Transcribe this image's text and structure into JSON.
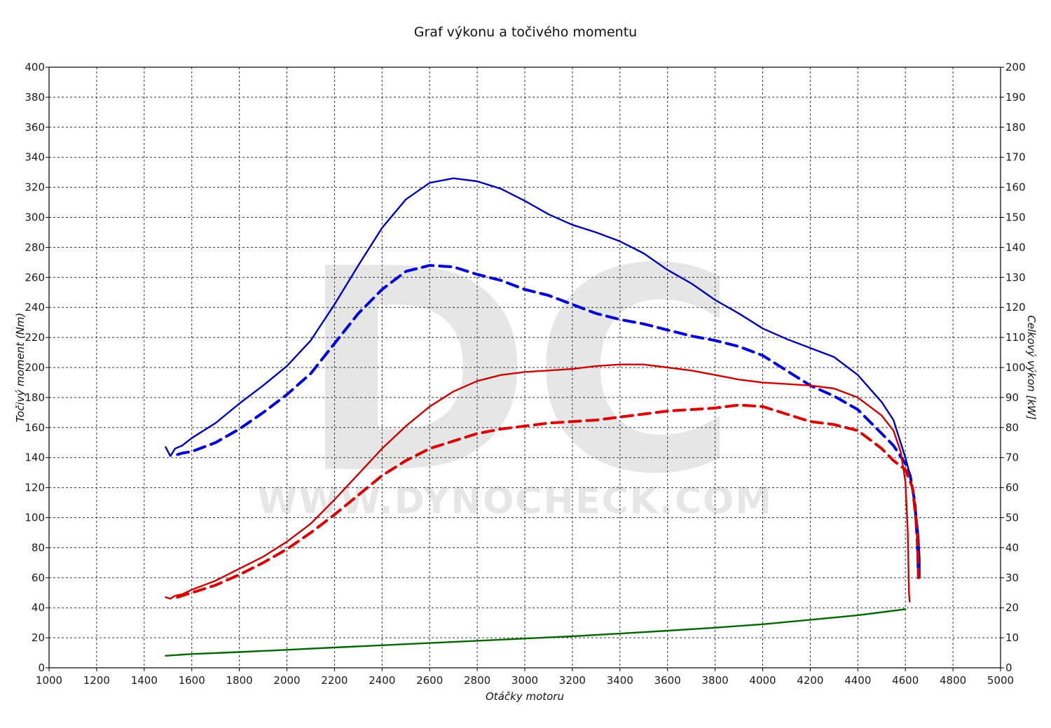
{
  "chart_data": {
    "type": "line",
    "title": "Graf výkonu a točivého momentu",
    "xlabel": "Otáčky motoru",
    "ylabel_left": "Točivý moment (Nm)",
    "ylabel_right": "Celkový výkon [kW]",
    "xlim": [
      1000,
      5000
    ],
    "ylim_left": [
      0,
      400
    ],
    "ylim_right": [
      0,
      200
    ],
    "x_ticks": [
      1000,
      1200,
      1400,
      1600,
      1800,
      2000,
      2200,
      2400,
      2600,
      2800,
      3000,
      3200,
      3400,
      3600,
      3800,
      4000,
      4200,
      4400,
      4600,
      4800,
      5000
    ],
    "y_ticks_left": [
      0,
      20,
      40,
      60,
      80,
      100,
      120,
      140,
      160,
      180,
      200,
      220,
      240,
      260,
      280,
      300,
      320,
      340,
      360,
      380,
      400
    ],
    "y_ticks_right": [
      0,
      10,
      20,
      30,
      40,
      50,
      60,
      70,
      80,
      90,
      100,
      110,
      120,
      130,
      140,
      150,
      160,
      170,
      180,
      190,
      200
    ],
    "grid": true,
    "legend": "none",
    "watermark": {
      "letters": "DC",
      "url": "WWW.DYNOCHECK.COM"
    },
    "series": [
      {
        "axis": "left",
        "color": "#0000bb",
        "dash": "solid",
        "points": [
          [
            1490,
            147
          ],
          [
            1510,
            141
          ],
          [
            1530,
            146
          ],
          [
            1560,
            148
          ],
          [
            1600,
            153
          ],
          [
            1700,
            163
          ],
          [
            1800,
            176
          ],
          [
            1900,
            188
          ],
          [
            2000,
            201
          ],
          [
            2100,
            218
          ],
          [
            2200,
            242
          ],
          [
            2300,
            268
          ],
          [
            2400,
            293
          ],
          [
            2500,
            312
          ],
          [
            2600,
            323
          ],
          [
            2700,
            326
          ],
          [
            2800,
            324
          ],
          [
            2900,
            319
          ],
          [
            3000,
            311
          ],
          [
            3100,
            302
          ],
          [
            3200,
            295
          ],
          [
            3300,
            290
          ],
          [
            3400,
            284
          ],
          [
            3500,
            276
          ],
          [
            3600,
            265
          ],
          [
            3700,
            256
          ],
          [
            3800,
            245
          ],
          [
            3900,
            236
          ],
          [
            4000,
            226
          ],
          [
            4100,
            219
          ],
          [
            4200,
            213
          ],
          [
            4300,
            207
          ],
          [
            4400,
            195
          ],
          [
            4500,
            177
          ],
          [
            4550,
            165
          ],
          [
            4580,
            150
          ],
          [
            4600,
            140
          ],
          [
            4620,
            128
          ],
          [
            4640,
            110
          ],
          [
            4655,
            88
          ],
          [
            4660,
            72
          ],
          [
            4660,
            60
          ]
        ]
      },
      {
        "axis": "right",
        "color": "#0000dd",
        "dash": "dashed",
        "points": [
          [
            1540,
            71
          ],
          [
            1560,
            71.5
          ],
          [
            1600,
            72
          ],
          [
            1700,
            75
          ],
          [
            1800,
            79.5
          ],
          [
            1900,
            85
          ],
          [
            2000,
            91
          ],
          [
            2100,
            98
          ],
          [
            2200,
            108
          ],
          [
            2300,
            118
          ],
          [
            2400,
            126
          ],
          [
            2500,
            132
          ],
          [
            2600,
            134
          ],
          [
            2700,
            133.5
          ],
          [
            2800,
            131
          ],
          [
            2900,
            129
          ],
          [
            3000,
            126
          ],
          [
            3100,
            124
          ],
          [
            3200,
            121
          ],
          [
            3300,
            118
          ],
          [
            3400,
            116
          ],
          [
            3500,
            114.5
          ],
          [
            3600,
            112.5
          ],
          [
            3700,
            110.5
          ],
          [
            3800,
            109
          ],
          [
            3900,
            107
          ],
          [
            4000,
            104
          ],
          [
            4100,
            99
          ],
          [
            4200,
            94
          ],
          [
            4300,
            90.5
          ],
          [
            4400,
            86
          ],
          [
            4500,
            78
          ],
          [
            4550,
            74
          ],
          [
            4600,
            68
          ],
          [
            4620,
            64
          ],
          [
            4640,
            55
          ],
          [
            4650,
            42
          ],
          [
            4655,
            30
          ]
        ]
      },
      {
        "axis": "right",
        "color": "#cc0000",
        "dash": "solid",
        "points": [
          [
            1490,
            23.5
          ],
          [
            1510,
            23
          ],
          [
            1530,
            24
          ],
          [
            1560,
            24.5
          ],
          [
            1600,
            26
          ],
          [
            1700,
            29
          ],
          [
            1800,
            33
          ],
          [
            1900,
            37
          ],
          [
            2000,
            42
          ],
          [
            2100,
            48
          ],
          [
            2200,
            56
          ],
          [
            2300,
            64.5
          ],
          [
            2400,
            73
          ],
          [
            2500,
            80.5
          ],
          [
            2600,
            87
          ],
          [
            2700,
            92
          ],
          [
            2800,
            95.5
          ],
          [
            2900,
            97.5
          ],
          [
            3000,
            98.5
          ],
          [
            3100,
            99
          ],
          [
            3200,
            99.5
          ],
          [
            3300,
            100.5
          ],
          [
            3400,
            101
          ],
          [
            3500,
            101
          ],
          [
            3600,
            100
          ],
          [
            3700,
            99
          ],
          [
            3800,
            97.5
          ],
          [
            3900,
            96
          ],
          [
            4000,
            95
          ],
          [
            4100,
            94.5
          ],
          [
            4200,
            94
          ],
          [
            4300,
            93
          ],
          [
            4400,
            90
          ],
          [
            4500,
            84
          ],
          [
            4550,
            79
          ],
          [
            4580,
            72
          ],
          [
            4600,
            62
          ],
          [
            4610,
            45
          ],
          [
            4615,
            25
          ],
          [
            4618,
            22
          ]
        ]
      },
      {
        "axis": "right",
        "color": "#dd0000",
        "dash": "dashed",
        "points": [
          [
            1540,
            23.5
          ],
          [
            1560,
            24
          ],
          [
            1600,
            25
          ],
          [
            1700,
            27.5
          ],
          [
            1800,
            31
          ],
          [
            1900,
            35
          ],
          [
            2000,
            39.5
          ],
          [
            2100,
            45
          ],
          [
            2200,
            51
          ],
          [
            2300,
            57.5
          ],
          [
            2400,
            64
          ],
          [
            2500,
            69
          ],
          [
            2600,
            73
          ],
          [
            2700,
            75.5
          ],
          [
            2800,
            78
          ],
          [
            2900,
            79.5
          ],
          [
            3000,
            80.5
          ],
          [
            3100,
            81.5
          ],
          [
            3200,
            82
          ],
          [
            3300,
            82.5
          ],
          [
            3400,
            83.5
          ],
          [
            3500,
            84.5
          ],
          [
            3600,
            85.5
          ],
          [
            3700,
            86
          ],
          [
            3800,
            86.5
          ],
          [
            3900,
            87.5
          ],
          [
            4000,
            87
          ],
          [
            4100,
            84.5
          ],
          [
            4200,
            82
          ],
          [
            4300,
            81
          ],
          [
            4400,
            79
          ],
          [
            4500,
            73
          ],
          [
            4550,
            69
          ],
          [
            4600,
            66
          ],
          [
            4630,
            60
          ],
          [
            4650,
            45
          ],
          [
            4655,
            30
          ]
        ]
      },
      {
        "axis": "left",
        "color": "#006600",
        "dash": "solid",
        "points": [
          [
            1490,
            8
          ],
          [
            1600,
            9.2
          ],
          [
            1800,
            10.5
          ],
          [
            2000,
            12
          ],
          [
            2200,
            13.5
          ],
          [
            2400,
            15
          ],
          [
            2600,
            16.5
          ],
          [
            2800,
            18
          ],
          [
            3000,
            19.5
          ],
          [
            3200,
            21
          ],
          [
            3400,
            22.8
          ],
          [
            3600,
            24.7
          ],
          [
            3800,
            26.7
          ],
          [
            4000,
            29
          ],
          [
            4200,
            32
          ],
          [
            4400,
            35
          ],
          [
            4600,
            39
          ]
        ]
      }
    ]
  }
}
